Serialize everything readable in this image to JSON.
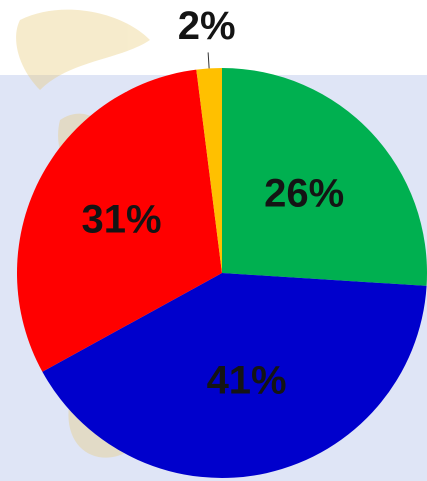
{
  "chart_data": {
    "type": "pie",
    "values": [
      26,
      41,
      31,
      2
    ],
    "value_labels": [
      "26%",
      "41%",
      "31%",
      "2%"
    ],
    "colors": [
      "#00b050",
      "#0000cc",
      "#ff0000",
      "#ffc000"
    ]
  }
}
